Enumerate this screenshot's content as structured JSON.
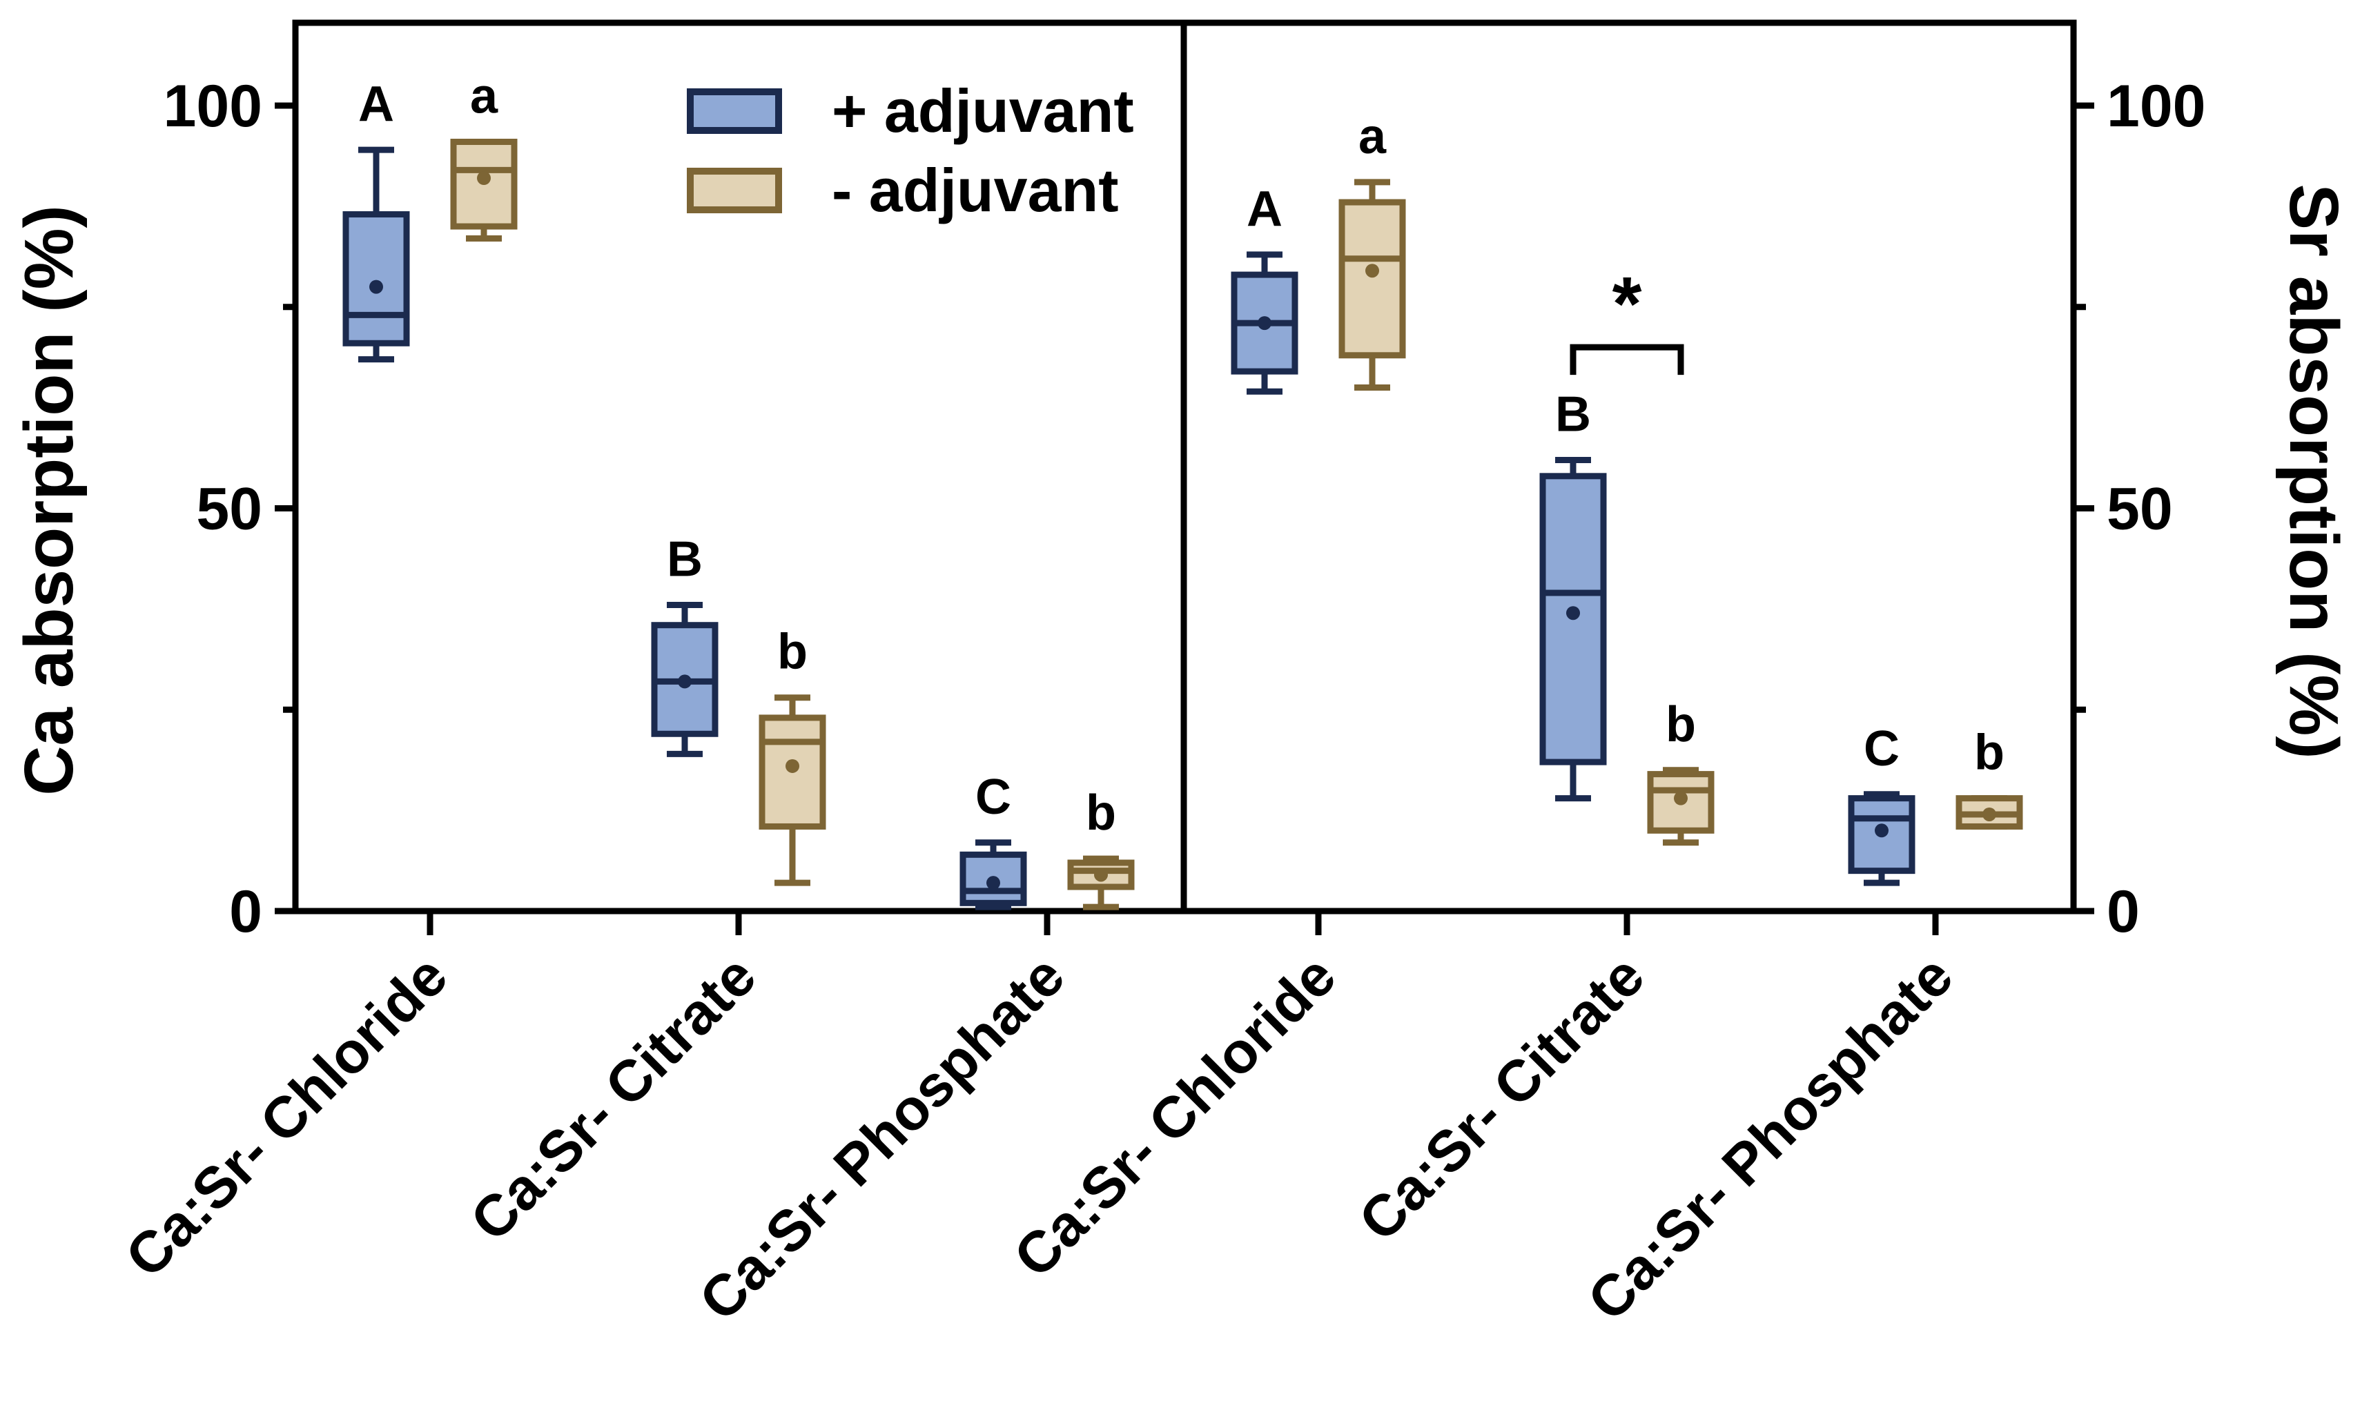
{
  "chart_data": {
    "type": "box",
    "left_panel": {
      "ylabel": "Ca absorption (%)",
      "ylim": [
        0,
        110
      ],
      "yticks": [
        0,
        50,
        100
      ],
      "categories": [
        "Ca:Sr- Chloride",
        "Ca:Sr- Citrate",
        "Ca:Sr- Phosphate"
      ]
    },
    "right_panel": {
      "ylabel": "Sr absorption (%)",
      "ylim": [
        0,
        110
      ],
      "yticks": [
        0,
        50,
        100
      ],
      "categories": [
        "Ca:Sr- Chloride",
        "Ca:Sr- Citrate",
        "Ca:Sr- Phosphate"
      ]
    },
    "legend": [
      {
        "name": "+ adjuvant",
        "fill": "#8FA9D6",
        "stroke": "#1B2A4E"
      },
      {
        "name": "- adjuvant",
        "fill": "#E2D3B5",
        "stroke": "#7D6535"
      }
    ],
    "boxes": [
      {
        "panel": "left",
        "category": 0,
        "series": 0,
        "min": 68.5,
        "q1": 70.5,
        "median": 74,
        "q3": 86.5,
        "max": 94.5,
        "mean": 77.5,
        "letter": "A"
      },
      {
        "panel": "left",
        "category": 0,
        "series": 1,
        "min": 83.5,
        "q1": 85,
        "median": 92,
        "q3": 95.5,
        "max": 95.5,
        "mean": 91,
        "letter": "a"
      },
      {
        "panel": "left",
        "category": 1,
        "series": 0,
        "min": 19.5,
        "q1": 22,
        "median": 28.5,
        "q3": 35.5,
        "max": 38,
        "mean": 28.5,
        "letter": "B"
      },
      {
        "panel": "left",
        "category": 1,
        "series": 1,
        "min": 3.5,
        "q1": 10.5,
        "median": 21,
        "q3": 24,
        "max": 26.5,
        "mean": 18,
        "letter": "b"
      },
      {
        "panel": "left",
        "category": 2,
        "series": 0,
        "min": 0.5,
        "q1": 1,
        "median": 2.5,
        "q3": 7,
        "max": 8.5,
        "mean": 3.5,
        "letter": "C"
      },
      {
        "panel": "left",
        "category": 2,
        "series": 1,
        "min": 0.5,
        "q1": 3,
        "median": 5,
        "q3": 6,
        "max": 6.5,
        "mean": 4.5,
        "letter": "b"
      },
      {
        "panel": "right",
        "category": 0,
        "series": 0,
        "min": 64.5,
        "q1": 67,
        "median": 73,
        "q3": 79,
        "max": 81.5,
        "mean": 73,
        "letter": "A"
      },
      {
        "panel": "right",
        "category": 0,
        "series": 1,
        "min": 65,
        "q1": 69,
        "median": 81,
        "q3": 88,
        "max": 90.5,
        "mean": 79.5,
        "letter": "a"
      },
      {
        "panel": "right",
        "category": 1,
        "series": 0,
        "min": 14,
        "q1": 18.5,
        "median": 39.5,
        "q3": 54,
        "max": 56,
        "mean": 37,
        "letter": "B"
      },
      {
        "panel": "right",
        "category": 1,
        "series": 1,
        "min": 8.5,
        "q1": 10,
        "median": 15,
        "q3": 17,
        "max": 17.5,
        "mean": 14,
        "letter": "b"
      },
      {
        "panel": "right",
        "category": 2,
        "series": 0,
        "min": 3.5,
        "q1": 5,
        "median": 11.5,
        "q3": 14,
        "max": 14.5,
        "mean": 10,
        "letter": "C"
      },
      {
        "panel": "right",
        "category": 2,
        "series": 1,
        "min": 10.5,
        "q1": 10.5,
        "median": 12,
        "q3": 14,
        "max": 14,
        "mean": 12,
        "letter": "b"
      }
    ],
    "significance": {
      "panel": "right",
      "category": 1,
      "label": "*"
    }
  }
}
